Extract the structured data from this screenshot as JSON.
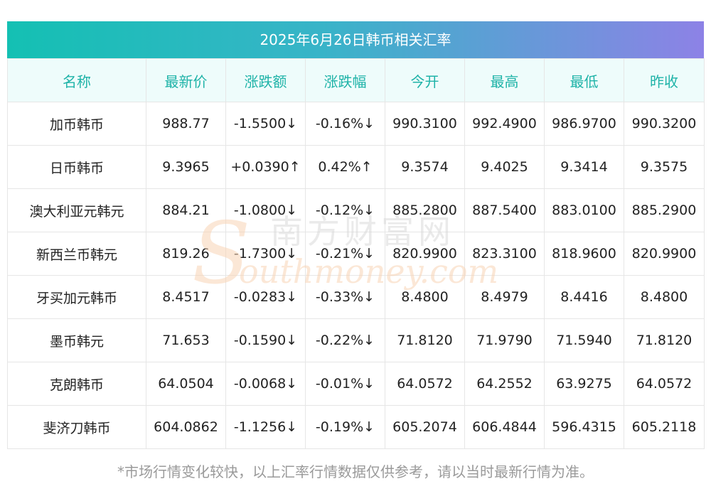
{
  "title": "2025年6月26日韩币相关汇率",
  "columns": [
    "名称",
    "最新价",
    "涨跌额",
    "涨跌幅",
    "今开",
    "最高",
    "最低",
    "昨收"
  ],
  "rows": [
    {
      "name": "加币韩币",
      "latest": "988.77",
      "change": "-1.5500↓",
      "change_pct": "-0.16%↓",
      "open": "990.3100",
      "high": "992.4900",
      "low": "986.9700",
      "prev_close": "990.3200",
      "direction": "down"
    },
    {
      "name": "日币韩币",
      "latest": "9.3965",
      "change": "+0.0390↑",
      "change_pct": "0.42%↑",
      "open": "9.3574",
      "high": "9.4025",
      "low": "9.3414",
      "prev_close": "9.3575",
      "direction": "up"
    },
    {
      "name": "澳大利亚元韩元",
      "latest": "884.21",
      "change": "-1.0800↓",
      "change_pct": "-0.12%↓",
      "open": "885.2800",
      "high": "887.5400",
      "low": "883.0100",
      "prev_close": "885.2900",
      "direction": "down"
    },
    {
      "name": "新西兰币韩元",
      "latest": "819.26",
      "change": "-1.7300↓",
      "change_pct": "-0.21%↓",
      "open": "820.9900",
      "high": "823.3100",
      "low": "818.9600",
      "prev_close": "820.9900",
      "direction": "down"
    },
    {
      "name": "牙买加元韩币",
      "latest": "8.4517",
      "change": "-0.0283↓",
      "change_pct": "-0.33%↓",
      "open": "8.4800",
      "high": "8.4979",
      "low": "8.4416",
      "prev_close": "8.4800",
      "direction": "down"
    },
    {
      "name": "墨币韩元",
      "latest": "71.653",
      "change": "-0.1590↓",
      "change_pct": "-0.22%↓",
      "open": "71.8120",
      "high": "71.9790",
      "low": "71.5940",
      "prev_close": "71.8120",
      "direction": "down"
    },
    {
      "name": "克朗韩币",
      "latest": "64.0504",
      "change": "-0.0068↓",
      "change_pct": "-0.01%↓",
      "open": "64.0572",
      "high": "64.2552",
      "low": "63.9275",
      "prev_close": "64.0572",
      "direction": "down"
    },
    {
      "name": "斐济刀韩币",
      "latest": "604.0862",
      "change": "-1.1256↓",
      "change_pct": "-0.19%↓",
      "open": "605.2074",
      "high": "606.4844",
      "low": "596.4315",
      "prev_close": "605.2118",
      "direction": "down"
    }
  ],
  "watermark": {
    "cn": "南方财富网",
    "en": "outhmoney.com"
  },
  "footnote": "*市场行情变化较快，以上汇率行情数据仅供参考，请以当时最新行情为准。",
  "colors": {
    "header_text": "#1fb3a8",
    "header_bg": "#eefcfb",
    "up": "#e8192c",
    "down": "#0f8a0f",
    "title_gradient_start": "#14c0b3",
    "title_gradient_end": "#8d82e6"
  }
}
